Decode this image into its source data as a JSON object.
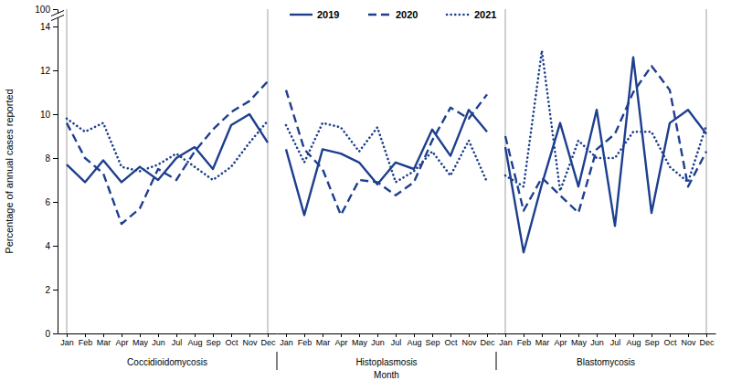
{
  "chart_data": [
    {
      "type": "line",
      "title": "Coccidioidomycosis",
      "ylabel": "Percentage of annual cases reported",
      "categories": [
        "Jan",
        "Feb",
        "Mar",
        "Apr",
        "May",
        "Jun",
        "Jul",
        "Aug",
        "Sep",
        "Oct",
        "Nov",
        "Dec"
      ],
      "ylim": [
        0,
        100
      ],
      "yticks": [
        0,
        2,
        4,
        6,
        8,
        10,
        12,
        14,
        100
      ],
      "legend": "top",
      "series": [
        {
          "name": "2019",
          "color": "#1d3f8e",
          "line_style": "solid",
          "values": [
            7.7,
            6.9,
            7.9,
            6.9,
            7.6,
            7.0,
            8.0,
            8.5,
            7.5,
            9.5,
            10.0,
            8.7
          ]
        },
        {
          "name": "2020",
          "color": "#1d3f8e",
          "line_style": "dashed",
          "values": [
            9.6,
            8.0,
            7.3,
            5.0,
            5.7,
            7.5,
            7.0,
            8.3,
            9.3,
            10.1,
            10.6,
            11.5
          ]
        },
        {
          "name": "2021",
          "color": "#1d3f8e",
          "line_style": "dotted",
          "values": [
            9.8,
            9.2,
            9.6,
            7.6,
            7.4,
            7.7,
            8.2,
            7.6,
            7.0,
            7.6,
            8.7,
            9.7
          ]
        }
      ]
    },
    {
      "type": "line",
      "title": "Histoplasmosis",
      "xlabel": "Month",
      "categories": [
        "Jan",
        "Feb",
        "Mar",
        "Apr",
        "May",
        "Jun",
        "Jul",
        "Aug",
        "Sep",
        "Oct",
        "Nov",
        "Dec"
      ],
      "ylim": [
        0,
        100
      ],
      "tick_labels": "x",
      "series": [
        {
          "color": "#1d3f8e",
          "line_style": "solid",
          "values": [
            8.4,
            5.4,
            8.4,
            8.2,
            7.8,
            6.8,
            7.8,
            7.5,
            9.3,
            8.1,
            10.2,
            9.2
          ]
        },
        {
          "color": "#1d3f8e",
          "line_style": "dashed",
          "values": [
            11.1,
            8.4,
            7.5,
            5.4,
            7.0,
            6.9,
            6.3,
            6.9,
            8.8,
            10.3,
            9.8,
            10.9
          ]
        },
        {
          "color": "#1d3f8e",
          "line_style": "dotted",
          "values": [
            9.5,
            7.8,
            9.6,
            9.4,
            8.3,
            9.4,
            6.9,
            7.4,
            8.3,
            7.2,
            8.8,
            6.9
          ]
        }
      ]
    },
    {
      "type": "line",
      "title": "Blastomycosis",
      "categories": [
        "Jan",
        "Feb",
        "Mar",
        "Apr",
        "May",
        "Jun",
        "Jul",
        "Aug",
        "Sep",
        "Oct",
        "Nov",
        "Dec"
      ],
      "ylim": [
        0,
        100
      ],
      "tick_labels": "x",
      "series": [
        {
          "color": "#1d3f8e",
          "line_style": "solid",
          "values": [
            8.5,
            3.7,
            6.8,
            9.6,
            6.7,
            10.2,
            4.9,
            12.6,
            5.5,
            9.6,
            10.2,
            9.1
          ]
        },
        {
          "color": "#1d3f8e",
          "line_style": "dashed",
          "values": [
            9.0,
            5.6,
            7.1,
            6.3,
            5.5,
            8.4,
            9.1,
            11.0,
            12.2,
            11.1,
            6.7,
            8.3
          ]
        },
        {
          "color": "#1d3f8e",
          "line_style": "dotted",
          "values": [
            7.2,
            6.7,
            12.9,
            6.5,
            8.8,
            8.0,
            8.0,
            9.2,
            9.2,
            7.6,
            6.9,
            9.5
          ]
        }
      ]
    }
  ]
}
